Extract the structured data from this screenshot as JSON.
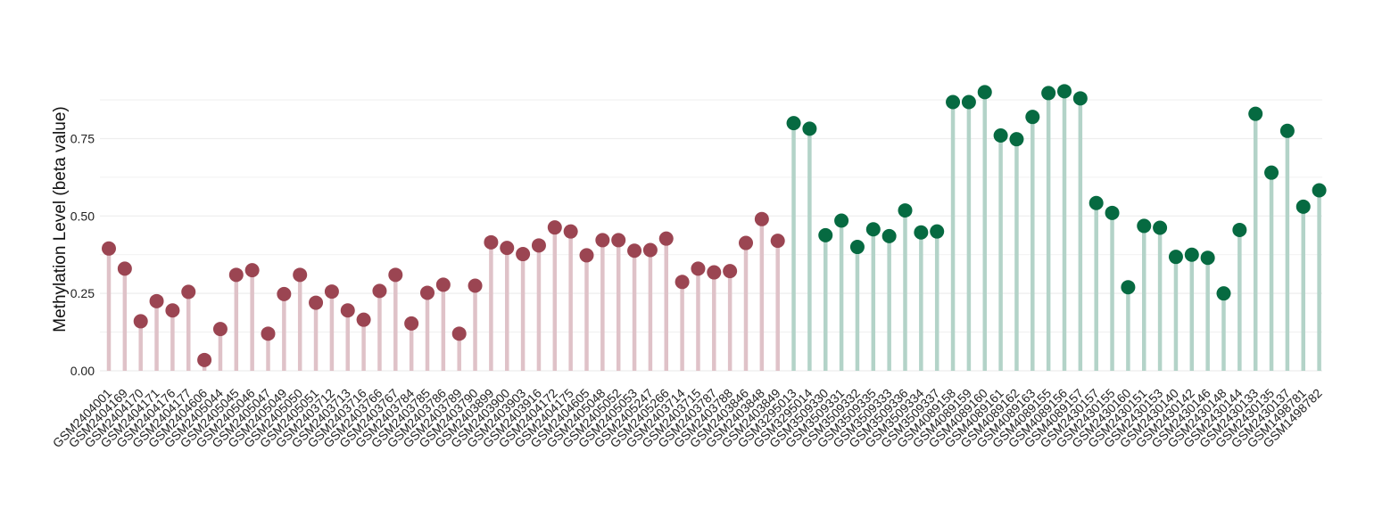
{
  "chart_data": {
    "type": "lollipop",
    "title": "",
    "xlabel": "",
    "ylabel": "Methylation Level (beta value)",
    "ylim": [
      0,
      0.95
    ],
    "yticks": [
      "0.00",
      "0.25",
      "0.50",
      "0.75"
    ],
    "grid": true,
    "colors": {
      "group_a_dot": "#9b4552",
      "group_a_stem": "#dfc2c8",
      "group_b_dot": "#066a41",
      "group_b_stem": "#b3d3c8",
      "grid": "#eeeeee"
    },
    "series": [
      {
        "group": "a",
        "categories": [
          "GSM2404001",
          "GSM2404169",
          "GSM2404170",
          "GSM2404171",
          "GSM2404176",
          "GSM2404177",
          "GSM2404606",
          "GSM2405044",
          "GSM2405045",
          "GSM2405046",
          "GSM2405047",
          "GSM2405049",
          "GSM2405050",
          "GSM2405051",
          "GSM2403712",
          "GSM2403713",
          "GSM2403716",
          "GSM2403766",
          "GSM2403767",
          "GSM2403784",
          "GSM2403785",
          "GSM2403786",
          "GSM2403789",
          "GSM2403790",
          "GSM2403899",
          "GSM2403900",
          "GSM2403903",
          "GSM2403916",
          "GSM2404172",
          "GSM2404175",
          "GSM2404605",
          "GSM2405048",
          "GSM2405052",
          "GSM2405053",
          "GSM2405247",
          "GSM2405266",
          "GSM2403714",
          "GSM2403715",
          "GSM2403787",
          "GSM2403788",
          "GSM2403846",
          "GSM2403848",
          "GSM2403849"
        ],
        "values": [
          0.395,
          0.33,
          0.16,
          0.225,
          0.195,
          0.255,
          0.035,
          0.135,
          0.31,
          0.325,
          0.12,
          0.248,
          0.31,
          0.22,
          0.256,
          0.195,
          0.165,
          0.258,
          0.31,
          0.153,
          0.252,
          0.278,
          0.12,
          0.275,
          0.415,
          0.397,
          0.377,
          0.405,
          0.463,
          0.45,
          0.373,
          0.422,
          0.422,
          0.388,
          0.39,
          0.427,
          0.287,
          0.33,
          0.318,
          0.322,
          0.413,
          0.49,
          0.42
        ]
      },
      {
        "group": "b",
        "categories": [
          "GSM3295013",
          "GSM3295014",
          "GSM3509330",
          "GSM3509331",
          "GSM3509332",
          "GSM3509335",
          "GSM3509333",
          "GSM3509336",
          "GSM3509334",
          "GSM3509337",
          "GSM4089158",
          "GSM4089159",
          "GSM4089160",
          "GSM4089161",
          "GSM4089162",
          "GSM4089163",
          "GSM4089155",
          "GSM4089156",
          "GSM4089157",
          "GSM2430157",
          "GSM2430155",
          "GSM2430160",
          "GSM2430151",
          "GSM2430153",
          "GSM2430140",
          "GSM2430142",
          "GSM2430146",
          "GSM2430148",
          "GSM2430144",
          "GSM2430133",
          "GSM2430135",
          "GSM2430137",
          "GSM1498781",
          "GSM1498782"
        ],
        "values": [
          0.8,
          0.782,
          0.438,
          0.485,
          0.4,
          0.457,
          0.435,
          0.518,
          0.447,
          0.45,
          0.868,
          0.868,
          0.9,
          0.76,
          0.748,
          0.82,
          0.897,
          0.903,
          0.88,
          0.542,
          0.51,
          0.27,
          0.468,
          0.462,
          0.368,
          0.375,
          0.365,
          0.25,
          0.455,
          0.83,
          0.64,
          0.775,
          0.53,
          0.583
        ]
      }
    ]
  }
}
